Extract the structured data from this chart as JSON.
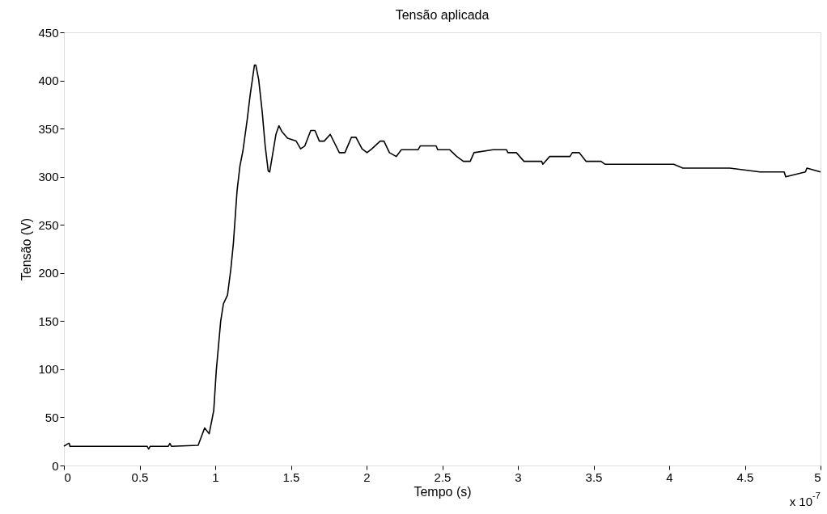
{
  "chart_data": {
    "type": "line",
    "title": "Tensão aplicada",
    "xlabel": "Tempo (s)",
    "ylabel": "Tensão (V)",
    "annotations": [
      "x 10$^{-7}$"
    ],
    "xlim": [
      0,
      5
    ],
    "ylim": [
      0,
      450
    ],
    "xticks": [
      0,
      0.5,
      1,
      1.5,
      2,
      2.5,
      3,
      3.5,
      4,
      4.5,
      5
    ],
    "yticks": [
      0,
      50,
      100,
      150,
      200,
      250,
      300,
      350,
      400,
      450
    ],
    "grid": false,
    "marker": "none",
    "line_style": "solid",
    "series": [
      {
        "color": "#000000",
        "x": [
          0,
          0.03,
          0.035,
          0.04,
          0.55,
          0.56,
          0.57,
          0.69,
          0.7,
          0.71,
          0.887,
          0.93,
          0.96,
          0.99,
          1.007,
          1.036,
          1.054,
          1.081,
          1.103,
          1.12,
          1.144,
          1.163,
          1.183,
          1.211,
          1.23,
          1.259,
          1.268,
          1.287,
          1.31,
          1.33,
          1.35,
          1.36,
          1.383,
          1.401,
          1.421,
          1.44,
          1.478,
          1.535,
          1.564,
          1.592,
          1.631,
          1.659,
          1.688,
          1.72,
          1.76,
          1.82,
          1.857,
          1.9,
          1.93,
          1.97,
          2.003,
          2.035,
          2.09,
          2.115,
          2.151,
          2.196,
          2.23,
          2.34,
          2.355,
          2.46,
          2.47,
          2.55,
          2.596,
          2.64,
          2.685,
          2.71,
          2.836,
          2.925,
          2.934,
          2.99,
          3.04,
          3.157,
          3.165,
          3.21,
          3.344,
          3.36,
          3.406,
          3.45,
          3.549,
          3.575,
          4.03,
          4.09,
          4.4,
          4.6,
          4.76,
          4.77,
          4.9,
          4.91,
          5
        ],
        "values": [
          20,
          23,
          23,
          20,
          20,
          17,
          20,
          20,
          23,
          20,
          21,
          39,
          33,
          57,
          99,
          150,
          168,
          177,
          204,
          231,
          285,
          311,
          327,
          359,
          384,
          416,
          416,
          401,
          368,
          332,
          306,
          305,
          327,
          344,
          353,
          347,
          340,
          337,
          329,
          332,
          348,
          348,
          337,
          337,
          344,
          325,
          325,
          341,
          341,
          329,
          325,
          329,
          337,
          337,
          325,
          321,
          328,
          328,
          332,
          332,
          328,
          328,
          321,
          316,
          316,
          325,
          328,
          328,
          325,
          325,
          316,
          316,
          313,
          321,
          321,
          325,
          325,
          316,
          316,
          313,
          313,
          309,
          309,
          305,
          305,
          300,
          305,
          309,
          305
        ]
      }
    ]
  }
}
